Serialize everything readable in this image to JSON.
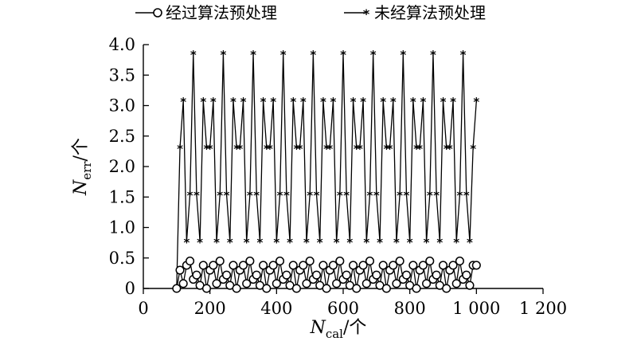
{
  "chart_data": {
    "type": "line",
    "title": "",
    "xlabel": {
      "main": "N",
      "sub": "cal",
      "suffix": "/个"
    },
    "ylabel": {
      "main": "N",
      "sub": "err",
      "suffix": "/个"
    },
    "xlim": [
      0,
      1200
    ],
    "ylim": [
      0,
      4.0
    ],
    "xticks": [
      0,
      200,
      400,
      600,
      800,
      1000,
      1200
    ],
    "xtick_labels": [
      "0",
      "200",
      "400",
      "600",
      "800",
      "1 000",
      "1 200"
    ],
    "yticks": [
      0,
      0.5,
      1.0,
      1.5,
      2.0,
      2.5,
      3.0,
      3.5,
      4.0
    ],
    "ytick_labels": [
      "0",
      "0.5",
      "1.0",
      "1.5",
      "2.0",
      "2.5",
      "3.0",
      "3.5",
      "4.0"
    ],
    "grid": false,
    "legend_position": "top",
    "series": [
      {
        "name": "经过算法预处理",
        "marker": "circle",
        "x": [
          100,
          110,
          120,
          130,
          140,
          150,
          160,
          170,
          180,
          190,
          200,
          210,
          220,
          230,
          240,
          250,
          260,
          270,
          280,
          290,
          300,
          310,
          320,
          330,
          340,
          350,
          360,
          370,
          380,
          390,
          400,
          410,
          420,
          430,
          440,
          450,
          460,
          470,
          480,
          490,
          500,
          510,
          520,
          530,
          540,
          550,
          560,
          570,
          580,
          590,
          600,
          610,
          620,
          630,
          640,
          650,
          660,
          670,
          680,
          690,
          700,
          710,
          720,
          730,
          740,
          750,
          760,
          770,
          780,
          790,
          800,
          810,
          820,
          830,
          840,
          850,
          860,
          870,
          880,
          890,
          900,
          910,
          920,
          930,
          940,
          950,
          960,
          970,
          980,
          990,
          1000
        ],
        "y": [
          0,
          0.3,
          0.08,
          0.38,
          0.45,
          0.15,
          0.22,
          0.05,
          0.38,
          0,
          0.3,
          0.38,
          0.08,
          0.45,
          0.15,
          0.22,
          0.05,
          0.38,
          0,
          0.3,
          0.38,
          0.08,
          0.45,
          0.15,
          0.22,
          0.05,
          0.38,
          0,
          0.3,
          0.38,
          0.08,
          0.45,
          0.15,
          0.22,
          0.05,
          0.38,
          0,
          0.3,
          0.38,
          0.08,
          0.45,
          0.15,
          0.22,
          0.05,
          0.38,
          0,
          0.3,
          0.38,
          0.08,
          0.45,
          0.15,
          0.22,
          0.05,
          0.38,
          0,
          0.3,
          0.38,
          0.08,
          0.45,
          0.15,
          0.22,
          0.05,
          0.38,
          0,
          0.3,
          0.38,
          0.08,
          0.45,
          0.15,
          0.22,
          0.05,
          0.38,
          0,
          0.3,
          0.38,
          0.08,
          0.45,
          0.15,
          0.22,
          0.05,
          0.38,
          0,
          0.3,
          0.38,
          0.08,
          0.45,
          0.15,
          0.22,
          0.05,
          0.38,
          0.38
        ]
      },
      {
        "name": "未经算法预处理",
        "marker": "asterisk",
        "x": [
          100,
          110,
          120,
          130,
          140,
          150,
          160,
          170,
          180,
          190,
          200,
          210,
          220,
          230,
          240,
          250,
          260,
          270,
          280,
          290,
          300,
          310,
          320,
          330,
          340,
          350,
          360,
          370,
          380,
          390,
          400,
          410,
          420,
          430,
          440,
          450,
          460,
          470,
          480,
          490,
          500,
          510,
          520,
          530,
          540,
          550,
          560,
          570,
          580,
          590,
          600,
          610,
          620,
          630,
          640,
          650,
          660,
          670,
          680,
          690,
          700,
          710,
          720,
          730,
          740,
          750,
          760,
          770,
          780,
          790,
          800,
          810,
          820,
          830,
          840,
          850,
          860,
          870,
          880,
          890,
          900,
          910,
          920,
          930,
          940,
          950,
          960,
          970,
          980,
          990,
          1000
        ],
        "y": [
          0,
          2.31,
          3.08,
          0.77,
          1.54,
          3.85,
          1.54,
          0.77,
          3.08,
          2.31,
          2.31,
          3.08,
          0.77,
          1.54,
          3.85,
          1.54,
          0.77,
          3.08,
          2.31,
          2.31,
          3.08,
          0.77,
          1.54,
          3.85,
          1.54,
          0.77,
          3.08,
          2.31,
          2.31,
          3.08,
          0.77,
          1.54,
          3.85,
          1.54,
          0.77,
          3.08,
          2.31,
          2.31,
          3.08,
          0.77,
          1.54,
          3.85,
          1.54,
          0.77,
          3.08,
          2.31,
          2.31,
          3.08,
          0.77,
          1.54,
          3.85,
          1.54,
          0.77,
          3.08,
          2.31,
          2.31,
          3.08,
          0.77,
          1.54,
          3.85,
          1.54,
          0.77,
          3.08,
          2.31,
          2.31,
          3.08,
          0.77,
          1.54,
          3.85,
          1.54,
          0.77,
          3.08,
          2.31,
          2.31,
          3.08,
          0.77,
          1.54,
          3.85,
          1.54,
          0.77,
          3.08,
          2.31,
          2.31,
          3.08,
          0.77,
          1.54,
          3.85,
          1.54,
          0.77,
          2.31,
          3.08
        ]
      }
    ]
  }
}
